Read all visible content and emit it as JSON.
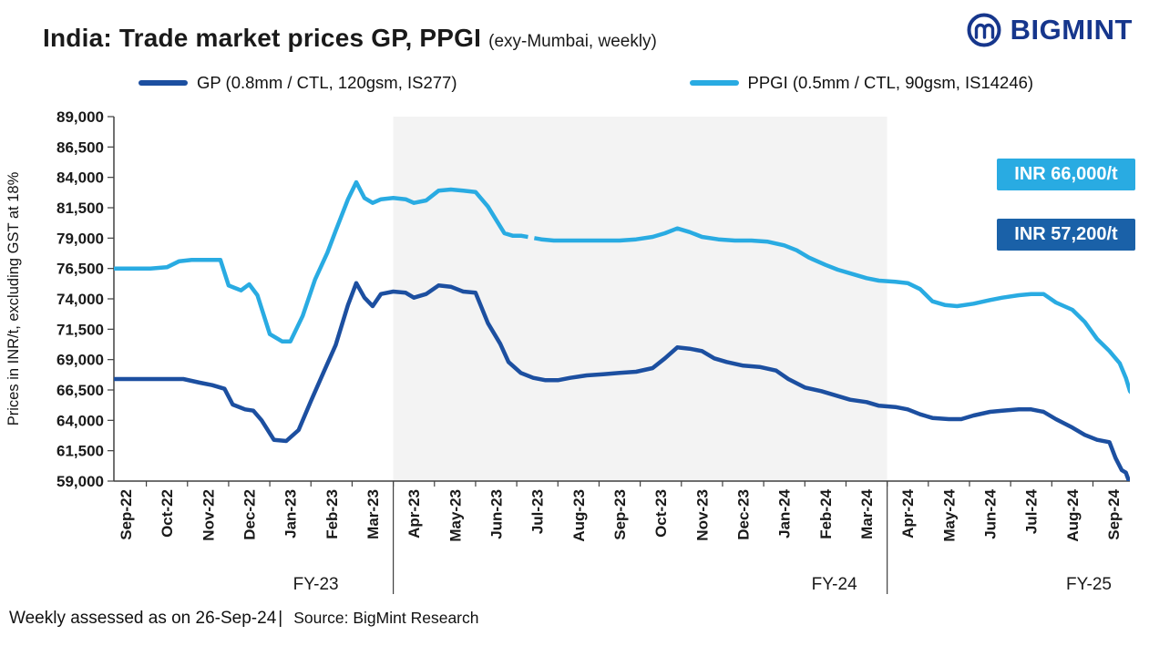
{
  "header": {
    "title": "India: Trade market prices GP, PPGI",
    "subtitle": "(exy-Mumbai, weekly)",
    "brand": "BIGMINT",
    "brand_color": "#16368c"
  },
  "legend": [
    {
      "label": "GP (0.8mm / CTL, 120gsm, IS277)",
      "color": "#1c4fa0"
    },
    {
      "label": "PPGI (0.5mm / CTL, 90gsm, IS14246)",
      "color": "#29abe2"
    }
  ],
  "annotations": [
    {
      "label": "INR 66,000/t",
      "color": "#29abe2"
    },
    {
      "label": "INR 57,200/t",
      "color": "#1a61a8"
    }
  ],
  "footer": {
    "assessed": "Weekly assessed as on 26-Sep-24",
    "separator": "|",
    "source": "Source: BigMint Research"
  },
  "chart_data": {
    "type": "line",
    "title": "India: Trade market prices GP, PPGI (exy-Mumbai, weekly)",
    "ylabel": "Prices in INR/t, excluding GST at 18%",
    "ylim": [
      59000,
      89000
    ],
    "ytick_step": 2500,
    "grid": false,
    "legend_position": "top",
    "band_color": "#f3f3f3",
    "x_labels": [
      "Sep-22",
      "Oct-22",
      "Nov-22",
      "Dec-22",
      "Jan-23",
      "Feb-23",
      "Mar-23",
      "Apr-23",
      "May-23",
      "Jun-23",
      "Jul-23",
      "Aug-23",
      "Sep-23",
      "Oct-23",
      "Nov-23",
      "Dec-23",
      "Jan-24",
      "Feb-24",
      "Mar-24",
      "Apr-24",
      "May-24",
      "Jun-24",
      "Jul-24",
      "Aug-24",
      "Sep-24"
    ],
    "fy_bands": [
      {
        "label": "FY-23",
        "from": -0.5,
        "to": 6.5,
        "shaded": false
      },
      {
        "label": "FY-24",
        "from": 6.5,
        "to": 18.5,
        "shaded": true
      },
      {
        "label": "FY-25",
        "from": 18.5,
        "to": 24.5,
        "shaded": false
      }
    ],
    "series": [
      {
        "name": "GP (0.8mm / CTL, 120gsm, IS277)",
        "color": "#1c4fa0",
        "latest_label": "INR 57,200/t",
        "points": [
          [
            -0.3,
            67400
          ],
          [
            0,
            67400
          ],
          [
            0.6,
            67400
          ],
          [
            1,
            67400
          ],
          [
            1.4,
            67400
          ],
          [
            1.8,
            67100
          ],
          [
            2.1,
            66900
          ],
          [
            2.4,
            66600
          ],
          [
            2.6,
            65300
          ],
          [
            2.9,
            64900
          ],
          [
            3.1,
            64800
          ],
          [
            3.3,
            64000
          ],
          [
            3.6,
            62400
          ],
          [
            3.9,
            62300
          ],
          [
            4.2,
            63200
          ],
          [
            4.5,
            65600
          ],
          [
            4.8,
            67900
          ],
          [
            5.1,
            70200
          ],
          [
            5.4,
            73500
          ],
          [
            5.6,
            75300
          ],
          [
            5.8,
            74100
          ],
          [
            6.0,
            73400
          ],
          [
            6.2,
            74400
          ],
          [
            6.5,
            74600
          ],
          [
            6.8,
            74500
          ],
          [
            7.0,
            74100
          ],
          [
            7.3,
            74400
          ],
          [
            7.6,
            75100
          ],
          [
            7.9,
            75000
          ],
          [
            8.2,
            74600
          ],
          [
            8.5,
            74500
          ],
          [
            8.8,
            72000
          ],
          [
            9.1,
            70300
          ],
          [
            9.3,
            68800
          ],
          [
            9.6,
            67900
          ],
          [
            9.9,
            67500
          ],
          [
            10.2,
            67300
          ],
          [
            10.5,
            67300
          ],
          [
            10.8,
            67500
          ],
          [
            11.2,
            67700
          ],
          [
            11.6,
            67800
          ],
          [
            12.0,
            67900
          ],
          [
            12.4,
            68000
          ],
          [
            12.8,
            68300
          ],
          [
            13.1,
            69100
          ],
          [
            13.4,
            70000
          ],
          [
            13.7,
            69900
          ],
          [
            14.0,
            69700
          ],
          [
            14.3,
            69100
          ],
          [
            14.6,
            68800
          ],
          [
            15.0,
            68500
          ],
          [
            15.4,
            68400
          ],
          [
            15.8,
            68100
          ],
          [
            16.1,
            67400
          ],
          [
            16.5,
            66700
          ],
          [
            16.9,
            66400
          ],
          [
            17.2,
            66100
          ],
          [
            17.6,
            65700
          ],
          [
            18.0,
            65500
          ],
          [
            18.3,
            65200
          ],
          [
            18.7,
            65100
          ],
          [
            19.0,
            64900
          ],
          [
            19.3,
            64500
          ],
          [
            19.6,
            64200
          ],
          [
            20.0,
            64100
          ],
          [
            20.3,
            64100
          ],
          [
            20.6,
            64400
          ],
          [
            21.0,
            64700
          ],
          [
            21.3,
            64800
          ],
          [
            21.7,
            64900
          ],
          [
            22.0,
            64900
          ],
          [
            22.3,
            64700
          ],
          [
            22.6,
            64100
          ],
          [
            23.0,
            63400
          ],
          [
            23.3,
            62800
          ],
          [
            23.6,
            62400
          ],
          [
            23.9,
            62200
          ],
          [
            24.05,
            60900
          ],
          [
            24.2,
            59900
          ],
          [
            24.3,
            59700
          ],
          [
            24.45,
            58300
          ],
          [
            24.6,
            57200
          ]
        ]
      },
      {
        "name": "PPGI (0.5mm / CTL, 90gsm, IS14246)",
        "color": "#29abe2",
        "latest_label": "INR 66,000/t",
        "dashed_ranges": [
          [
            9.6,
            10.1
          ]
        ],
        "points": [
          [
            -0.3,
            76500
          ],
          [
            0,
            76500
          ],
          [
            0.6,
            76500
          ],
          [
            1,
            76600
          ],
          [
            1.3,
            77100
          ],
          [
            1.6,
            77200
          ],
          [
            2.0,
            77200
          ],
          [
            2.3,
            77200
          ],
          [
            2.5,
            75100
          ],
          [
            2.8,
            74700
          ],
          [
            3.0,
            75200
          ],
          [
            3.2,
            74300
          ],
          [
            3.5,
            71100
          ],
          [
            3.8,
            70500
          ],
          [
            4.0,
            70500
          ],
          [
            4.3,
            72600
          ],
          [
            4.6,
            75600
          ],
          [
            4.9,
            77800
          ],
          [
            5.1,
            79600
          ],
          [
            5.4,
            82200
          ],
          [
            5.6,
            83600
          ],
          [
            5.8,
            82300
          ],
          [
            6.0,
            81900
          ],
          [
            6.2,
            82200
          ],
          [
            6.5,
            82300
          ],
          [
            6.8,
            82200
          ],
          [
            7.0,
            81900
          ],
          [
            7.3,
            82100
          ],
          [
            7.6,
            82900
          ],
          [
            7.9,
            83000
          ],
          [
            8.2,
            82900
          ],
          [
            8.5,
            82800
          ],
          [
            8.8,
            81600
          ],
          [
            9.0,
            80500
          ],
          [
            9.2,
            79400
          ],
          [
            9.4,
            79200
          ],
          [
            9.6,
            79200
          ],
          [
            10.1,
            78900
          ],
          [
            10.4,
            78800
          ],
          [
            10.8,
            78800
          ],
          [
            11.2,
            78800
          ],
          [
            11.6,
            78800
          ],
          [
            12.0,
            78800
          ],
          [
            12.4,
            78900
          ],
          [
            12.8,
            79100
          ],
          [
            13.1,
            79400
          ],
          [
            13.4,
            79800
          ],
          [
            13.7,
            79500
          ],
          [
            14.0,
            79100
          ],
          [
            14.4,
            78900
          ],
          [
            14.8,
            78800
          ],
          [
            15.2,
            78800
          ],
          [
            15.6,
            78700
          ],
          [
            16.0,
            78400
          ],
          [
            16.3,
            78000
          ],
          [
            16.6,
            77400
          ],
          [
            17.0,
            76800
          ],
          [
            17.3,
            76400
          ],
          [
            17.7,
            76000
          ],
          [
            18.0,
            75700
          ],
          [
            18.3,
            75500
          ],
          [
            18.7,
            75400
          ],
          [
            19.0,
            75300
          ],
          [
            19.3,
            74800
          ],
          [
            19.6,
            73800
          ],
          [
            19.9,
            73500
          ],
          [
            20.2,
            73400
          ],
          [
            20.6,
            73600
          ],
          [
            21.0,
            73900
          ],
          [
            21.3,
            74100
          ],
          [
            21.7,
            74300
          ],
          [
            22.0,
            74400
          ],
          [
            22.3,
            74400
          ],
          [
            22.6,
            73700
          ],
          [
            23.0,
            73100
          ],
          [
            23.3,
            72100
          ],
          [
            23.6,
            70700
          ],
          [
            23.9,
            69700
          ],
          [
            24.0,
            69300
          ],
          [
            24.15,
            68700
          ],
          [
            24.3,
            67500
          ],
          [
            24.4,
            66400
          ],
          [
            24.5,
            66000
          ]
        ]
      }
    ]
  }
}
